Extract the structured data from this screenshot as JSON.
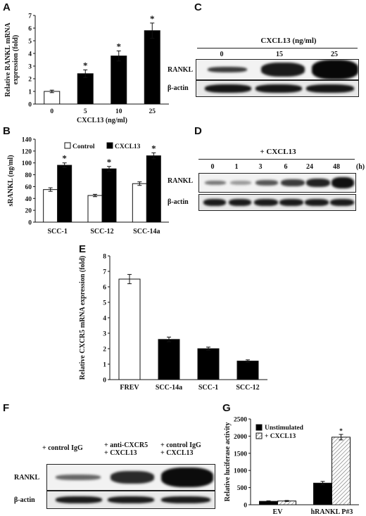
{
  "panels": {
    "A": {
      "letter": "A",
      "chart_data": {
        "type": "bar",
        "categories": [
          "0",
          "5",
          "10",
          "25"
        ],
        "values": [
          1.0,
          2.4,
          3.8,
          5.8
        ],
        "errors": [
          0.1,
          0.3,
          0.4,
          0.6
        ],
        "significant": [
          false,
          true,
          true,
          true
        ],
        "xlabel": "CXCL13 (ng/ml)",
        "ylabel": "Relative RANKL mRNA expression (fold)",
        "ylim": [
          0,
          7
        ],
        "yticks": [
          "0",
          "1",
          "2",
          "3",
          "4",
          "5",
          "6",
          "7"
        ],
        "colors": [
          "#ffffff",
          "#000000",
          "#000000",
          "#000000"
        ]
      }
    },
    "B": {
      "letter": "B",
      "chart_data": {
        "type": "bar",
        "categories": [
          "SCC-1",
          "SCC-12",
          "SCC-14a"
        ],
        "series": [
          {
            "name": "Control",
            "values": [
              55,
              45,
              65
            ],
            "errors": [
              3,
              2,
              3
            ],
            "color": "#ffffff"
          },
          {
            "name": "CXCL13",
            "values": [
              96,
              90,
              112
            ],
            "errors": [
              4,
              4,
              5
            ],
            "color": "#000000"
          }
        ],
        "significant": [
          true,
          true,
          true
        ],
        "ylabel": "sRANKL (ng/ml)",
        "ylim": [
          0,
          140
        ],
        "yticks": [
          "0",
          "20",
          "40",
          "60",
          "80",
          "100",
          "120",
          "140"
        ],
        "legend": "top"
      }
    },
    "C": {
      "letter": "C",
      "header": "CXCL13 (ng/ml)",
      "lanes": [
        "0",
        "15",
        "25"
      ],
      "rows": [
        "RANKL",
        "β-actin"
      ]
    },
    "D": {
      "letter": "D",
      "header": "+ CXCL13",
      "unit": "(h)",
      "lanes": [
        "0",
        "1",
        "3",
        "6",
        "24",
        "48"
      ],
      "rows": [
        "RANKL",
        "β-actin"
      ]
    },
    "E": {
      "letter": "E",
      "chart_data": {
        "type": "bar",
        "categories": [
          "FREV",
          "SCC-14a",
          "SCC-1",
          "SCC-12"
        ],
        "values": [
          6.5,
          2.6,
          2.0,
          1.2
        ],
        "errors": [
          0.3,
          0.15,
          0.1,
          0.08
        ],
        "colors": [
          "#ffffff",
          "#000000",
          "#000000",
          "#000000"
        ],
        "ylabel": "Relative CXCR5 mRNA expression (fold)",
        "ylim": [
          0,
          8
        ],
        "yticks": [
          "0",
          "1",
          "2",
          "3",
          "4",
          "5",
          "6",
          "7",
          "8"
        ]
      }
    },
    "F": {
      "letter": "F",
      "lanes": [
        "+ control IgG",
        "+ anti-CXCR5\n+ CXCL13",
        "+ control IgG\n+ CXCL13"
      ],
      "rows": [
        "RANKL",
        "β-actin"
      ]
    },
    "G": {
      "letter": "G",
      "chart_data": {
        "type": "bar",
        "categories": [
          "EV",
          "hRANKL P#3"
        ],
        "series": [
          {
            "name": "Unstimulated",
            "values": [
              100,
              630
            ],
            "errors": [
              15,
              50
            ],
            "color": "#000000"
          },
          {
            "name": "+ CXCL13",
            "values": [
              110,
              1970
            ],
            "errors": [
              15,
              80
            ],
            "color": "hatched"
          }
        ],
        "significant_mark": "*",
        "ylabel": "Relative luciferase activity",
        "ylim": [
          0,
          2500
        ],
        "yticks": [
          "0",
          "500",
          "1000",
          "1500",
          "2000",
          "2500"
        ],
        "legend": "top-left"
      }
    }
  }
}
